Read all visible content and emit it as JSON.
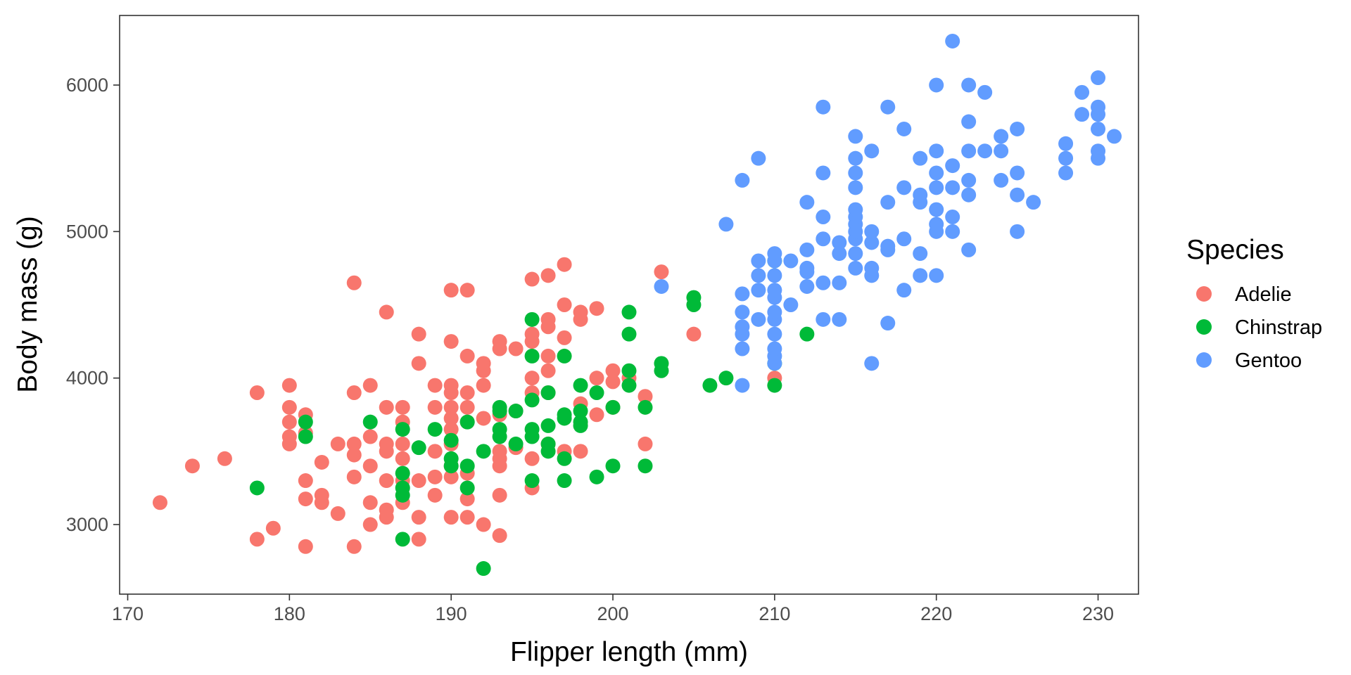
{
  "chart_data": {
    "type": "scatter",
    "xlabel": "Flipper length (mm)",
    "ylabel": "Body mass (g)",
    "xlim": [
      169.5,
      232.5
    ],
    "ylim": [
      2525,
      6475
    ],
    "xticks": [
      170,
      180,
      190,
      200,
      210,
      220,
      230
    ],
    "yticks": [
      3000,
      4000,
      5000,
      6000
    ],
    "grid": false,
    "legend": {
      "title": "Species",
      "placement": "right"
    },
    "series": [
      {
        "name": "Adelie",
        "color": "#F8766D",
        "points": [
          [
            172,
            3150
          ],
          [
            174,
            3400
          ],
          [
            176,
            3450
          ],
          [
            178,
            2900
          ],
          [
            178,
            3900
          ],
          [
            179,
            2975
          ],
          [
            180,
            3550
          ],
          [
            180,
            3600
          ],
          [
            180,
            3700
          ],
          [
            180,
            3800
          ],
          [
            180,
            3950
          ],
          [
            181,
            2850
          ],
          [
            181,
            3175
          ],
          [
            181,
            3300
          ],
          [
            181,
            3625
          ],
          [
            181,
            3750
          ],
          [
            182,
            3150
          ],
          [
            182,
            3200
          ],
          [
            182,
            3425
          ],
          [
            183,
            3075
          ],
          [
            183,
            3550
          ],
          [
            184,
            2850
          ],
          [
            184,
            3325
          ],
          [
            184,
            3475
          ],
          [
            184,
            3550
          ],
          [
            184,
            3900
          ],
          [
            184,
            4650
          ],
          [
            185,
            3000
          ],
          [
            185,
            3150
          ],
          [
            185,
            3400
          ],
          [
            185,
            3600
          ],
          [
            185,
            3950
          ],
          [
            186,
            3050
          ],
          [
            186,
            3100
          ],
          [
            186,
            3300
          ],
          [
            186,
            3500
          ],
          [
            186,
            3550
          ],
          [
            186,
            3800
          ],
          [
            186,
            4450
          ],
          [
            187,
            3150
          ],
          [
            187,
            3300
          ],
          [
            187,
            3450
          ],
          [
            187,
            3550
          ],
          [
            187,
            3700
          ],
          [
            187,
            3800
          ],
          [
            188,
            2900
          ],
          [
            188,
            3050
          ],
          [
            188,
            3300
          ],
          [
            188,
            4100
          ],
          [
            188,
            4300
          ],
          [
            189,
            3200
          ],
          [
            189,
            3325
          ],
          [
            189,
            3500
          ],
          [
            189,
            3800
          ],
          [
            189,
            3950
          ],
          [
            190,
            3050
          ],
          [
            190,
            3325
          ],
          [
            190,
            3400
          ],
          [
            190,
            3550
          ],
          [
            190,
            3650
          ],
          [
            190,
            3725
          ],
          [
            190,
            3800
          ],
          [
            190,
            3900
          ],
          [
            190,
            3950
          ],
          [
            190,
            4250
          ],
          [
            190,
            4600
          ],
          [
            191,
            3050
          ],
          [
            191,
            3175
          ],
          [
            191,
            3350
          ],
          [
            191,
            3700
          ],
          [
            191,
            3800
          ],
          [
            191,
            3900
          ],
          [
            191,
            4150
          ],
          [
            191,
            4600
          ],
          [
            192,
            3000
          ],
          [
            192,
            3725
          ],
          [
            192,
            3950
          ],
          [
            192,
            4050
          ],
          [
            192,
            4100
          ],
          [
            193,
            2925
          ],
          [
            193,
            3200
          ],
          [
            193,
            3400
          ],
          [
            193,
            3450
          ],
          [
            193,
            3500
          ],
          [
            193,
            3750
          ],
          [
            193,
            4200
          ],
          [
            193,
            4250
          ],
          [
            194,
            3525
          ],
          [
            194,
            3775
          ],
          [
            194,
            4200
          ],
          [
            195,
            3250
          ],
          [
            195,
            3450
          ],
          [
            195,
            3900
          ],
          [
            195,
            4000
          ],
          [
            195,
            4250
          ],
          [
            195,
            4300
          ],
          [
            195,
            4675
          ],
          [
            196,
            3550
          ],
          [
            196,
            3900
          ],
          [
            196,
            4050
          ],
          [
            196,
            4150
          ],
          [
            196,
            4350
          ],
          [
            196,
            4400
          ],
          [
            196,
            4700
          ],
          [
            197,
            3500
          ],
          [
            197,
            4275
          ],
          [
            197,
            4500
          ],
          [
            197,
            4775
          ],
          [
            198,
            3500
          ],
          [
            198,
            3825
          ],
          [
            198,
            4400
          ],
          [
            198,
            4450
          ],
          [
            199,
            3750
          ],
          [
            199,
            4000
          ],
          [
            199,
            4475
          ],
          [
            200,
            3800
          ],
          [
            200,
            3975
          ],
          [
            200,
            4050
          ],
          [
            201,
            4000
          ],
          [
            202,
            3550
          ],
          [
            202,
            3875
          ],
          [
            203,
            4725
          ],
          [
            205,
            4300
          ],
          [
            210,
            4000
          ]
        ]
      },
      {
        "name": "Chinstrap",
        "color": "#00BA38",
        "points": [
          [
            178,
            3250
          ],
          [
            181,
            3600
          ],
          [
            181,
            3700
          ],
          [
            185,
            3700
          ],
          [
            187,
            2900
          ],
          [
            187,
            3200
          ],
          [
            187,
            3250
          ],
          [
            187,
            3350
          ],
          [
            187,
            3650
          ],
          [
            188,
            3525
          ],
          [
            189,
            3650
          ],
          [
            190,
            3400
          ],
          [
            190,
            3450
          ],
          [
            190,
            3575
          ],
          [
            191,
            3250
          ],
          [
            191,
            3400
          ],
          [
            191,
            3700
          ],
          [
            192,
            2700
          ],
          [
            192,
            3500
          ],
          [
            193,
            3600
          ],
          [
            193,
            3650
          ],
          [
            193,
            3775
          ],
          [
            193,
            3800
          ],
          [
            194,
            3550
          ],
          [
            194,
            3775
          ],
          [
            195,
            3300
          ],
          [
            195,
            3600
          ],
          [
            195,
            3650
          ],
          [
            195,
            3850
          ],
          [
            195,
            4150
          ],
          [
            195,
            4400
          ],
          [
            196,
            3500
          ],
          [
            196,
            3550
          ],
          [
            196,
            3675
          ],
          [
            196,
            3900
          ],
          [
            197,
            3300
          ],
          [
            197,
            3450
          ],
          [
            197,
            3725
          ],
          [
            197,
            3750
          ],
          [
            197,
            4150
          ],
          [
            198,
            3675
          ],
          [
            198,
            3700
          ],
          [
            198,
            3775
          ],
          [
            198,
            3950
          ],
          [
            199,
            3325
          ],
          [
            199,
            3900
          ],
          [
            200,
            3400
          ],
          [
            200,
            3800
          ],
          [
            201,
            3950
          ],
          [
            201,
            4050
          ],
          [
            201,
            4300
          ],
          [
            201,
            4450
          ],
          [
            202,
            3400
          ],
          [
            202,
            3800
          ],
          [
            203,
            4050
          ],
          [
            203,
            4100
          ],
          [
            205,
            4500
          ],
          [
            205,
            4550
          ],
          [
            206,
            3950
          ],
          [
            207,
            4000
          ],
          [
            210,
            3950
          ],
          [
            210,
            4100
          ],
          [
            210,
            4800
          ],
          [
            212,
            4300
          ]
        ]
      },
      {
        "name": "Gentoo",
        "color": "#619CFF",
        "points": [
          [
            203,
            4625
          ],
          [
            207,
            5050
          ],
          [
            208,
            3950
          ],
          [
            208,
            4200
          ],
          [
            208,
            4300
          ],
          [
            208,
            4350
          ],
          [
            208,
            4450
          ],
          [
            208,
            4575
          ],
          [
            208,
            5350
          ],
          [
            209,
            4400
          ],
          [
            209,
            4600
          ],
          [
            209,
            4700
          ],
          [
            209,
            4800
          ],
          [
            209,
            5500
          ],
          [
            210,
            4100
          ],
          [
            210,
            4150
          ],
          [
            210,
            4200
          ],
          [
            210,
            4300
          ],
          [
            210,
            4400
          ],
          [
            210,
            4450
          ],
          [
            210,
            4550
          ],
          [
            210,
            4600
          ],
          [
            210,
            4700
          ],
          [
            210,
            4800
          ],
          [
            210,
            4850
          ],
          [
            211,
            4500
          ],
          [
            211,
            4800
          ],
          [
            212,
            4625
          ],
          [
            212,
            4725
          ],
          [
            212,
            4750
          ],
          [
            212,
            4875
          ],
          [
            212,
            5200
          ],
          [
            213,
            4400
          ],
          [
            213,
            4650
          ],
          [
            213,
            4950
          ],
          [
            213,
            5100
          ],
          [
            213,
            5400
          ],
          [
            213,
            5850
          ],
          [
            214,
            4400
          ],
          [
            214,
            4650
          ],
          [
            214,
            4850
          ],
          [
            214,
            4925
          ],
          [
            215,
            4750
          ],
          [
            215,
            4850
          ],
          [
            215,
            4950
          ],
          [
            215,
            5000
          ],
          [
            215,
            5050
          ],
          [
            215,
            5100
          ],
          [
            215,
            5150
          ],
          [
            215,
            5300
          ],
          [
            215,
            5400
          ],
          [
            215,
            5500
          ],
          [
            215,
            5650
          ],
          [
            216,
            4100
          ],
          [
            216,
            4700
          ],
          [
            216,
            4750
          ],
          [
            216,
            4925
          ],
          [
            216,
            5000
          ],
          [
            216,
            5550
          ],
          [
            217,
            4375
          ],
          [
            217,
            4875
          ],
          [
            217,
            4900
          ],
          [
            217,
            5200
          ],
          [
            217,
            5850
          ],
          [
            218,
            4600
          ],
          [
            218,
            4950
          ],
          [
            218,
            5300
          ],
          [
            218,
            5700
          ],
          [
            219,
            4700
          ],
          [
            219,
            4850
          ],
          [
            219,
            5200
          ],
          [
            219,
            5250
          ],
          [
            219,
            5500
          ],
          [
            220,
            4700
          ],
          [
            220,
            5000
          ],
          [
            220,
            5050
          ],
          [
            220,
            5150
          ],
          [
            220,
            5300
          ],
          [
            220,
            5400
          ],
          [
            220,
            5550
          ],
          [
            220,
            6000
          ],
          [
            221,
            5000
          ],
          [
            221,
            5100
          ],
          [
            221,
            5300
          ],
          [
            221,
            5450
          ],
          [
            221,
            6300
          ],
          [
            222,
            4875
          ],
          [
            222,
            5250
          ],
          [
            222,
            5350
          ],
          [
            222,
            5550
          ],
          [
            222,
            5750
          ],
          [
            222,
            6000
          ],
          [
            223,
            5550
          ],
          [
            223,
            5950
          ],
          [
            224,
            5350
          ],
          [
            224,
            5550
          ],
          [
            224,
            5650
          ],
          [
            225,
            5000
          ],
          [
            225,
            5250
          ],
          [
            225,
            5400
          ],
          [
            225,
            5700
          ],
          [
            226,
            5200
          ],
          [
            228,
            5400
          ],
          [
            228,
            5500
          ],
          [
            228,
            5600
          ],
          [
            229,
            5800
          ],
          [
            229,
            5950
          ],
          [
            230,
            5500
          ],
          [
            230,
            5550
          ],
          [
            230,
            5700
          ],
          [
            230,
            5800
          ],
          [
            230,
            5850
          ],
          [
            230,
            6050
          ],
          [
            231,
            5650
          ]
        ]
      }
    ]
  }
}
